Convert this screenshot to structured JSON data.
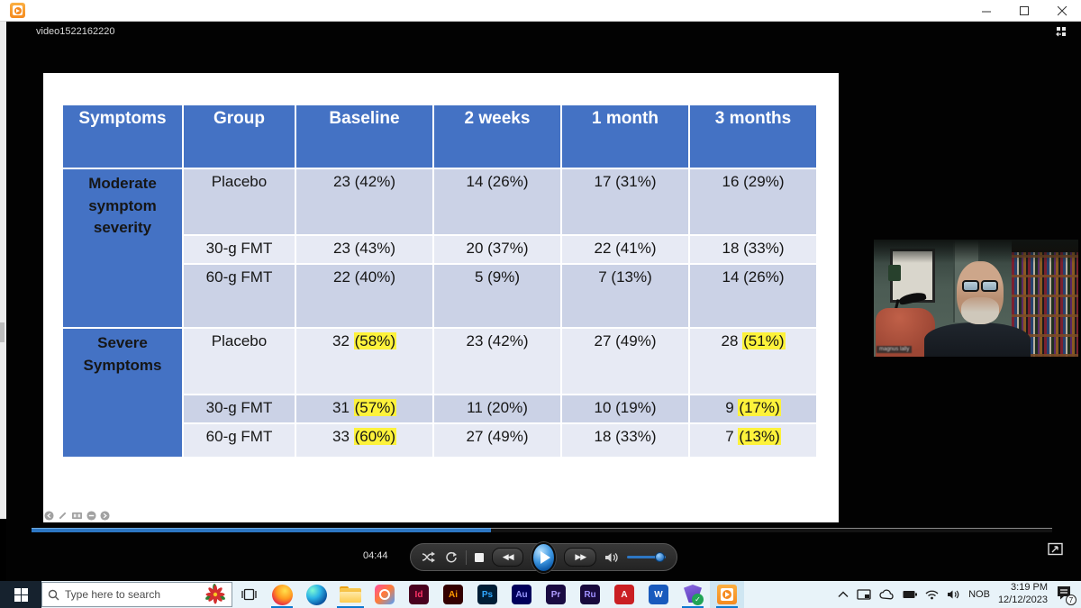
{
  "window": {
    "video_label": "video1522162220",
    "app_icon": "media-player-icon"
  },
  "slide": {
    "table": {
      "headers": [
        "Symptoms",
        "Group",
        "Baseline",
        "2 weeks",
        "1 month",
        "3 months"
      ],
      "groups": [
        {
          "label": "Moderate symptom severity",
          "rows": [
            {
              "group": "Placebo",
              "cells": [
                {
                  "pre": "23 (42%)"
                },
                {
                  "pre": "14 (26%)"
                },
                {
                  "pre": "17 (31%)"
                },
                {
                  "pre": "16 (29%)"
                }
              ]
            },
            {
              "group": "30-g FMT",
              "cells": [
                {
                  "pre": "23 (43%)"
                },
                {
                  "pre": "20 (37%)"
                },
                {
                  "pre": "22 (41%)"
                },
                {
                  "pre": "18 (33%)"
                }
              ]
            },
            {
              "group": "60-g FMT",
              "cells": [
                {
                  "pre": "22 (40%)"
                },
                {
                  "pre": "5 (9%)"
                },
                {
                  "pre": "7 (13%)"
                },
                {
                  "pre": "14 (26%)"
                }
              ]
            }
          ]
        },
        {
          "label": "Severe Symptoms",
          "rows": [
            {
              "group": "Placebo",
              "cells": [
                {
                  "pre": "32 ",
                  "hl": "(58%)"
                },
                {
                  "pre": "23 (42%)"
                },
                {
                  "pre": "27 (49%)"
                },
                {
                  "pre": "28 ",
                  "hl": "(51%)"
                }
              ]
            },
            {
              "group": "30-g FMT",
              "cells": [
                {
                  "pre": "31 ",
                  "hl": "(57%)"
                },
                {
                  "pre": "11 (20%)"
                },
                {
                  "pre": "10 (19%)"
                },
                {
                  "pre": "9 ",
                  "hl": "(17%)"
                }
              ]
            },
            {
              "group": "60-g FMT",
              "cells": [
                {
                  "pre": "33 ",
                  "hl": "(60%)"
                },
                {
                  "pre": "27 (49%)"
                },
                {
                  "pre": "18 (33%)"
                },
                {
                  "pre": "7 ",
                  "hl": "(13%)"
                }
              ]
            }
          ]
        }
      ],
      "colors": {
        "header_bg": "#4472c4",
        "band_dark": "#cbd2e6",
        "band_light": "#e7eaf4",
        "highlight": "#fdf23b"
      }
    },
    "toolbar_icons": [
      "prev-slide-icon",
      "pen-icon",
      "see-all-slides-icon",
      "options-icon",
      "next-slide-icon"
    ]
  },
  "player": {
    "elapsed": "04:44",
    "progress_pct": 45,
    "volume_pct": 85,
    "button_icons": [
      "shuffle-icon",
      "repeat-icon",
      "stop-icon",
      "rewind-icon",
      "play-icon",
      "fast-forward-icon",
      "volume-icon"
    ]
  },
  "webcam": {
    "name_label": "magnus lally"
  },
  "taskbar": {
    "search_placeholder": "Type here to search",
    "apps": [
      {
        "id": "firefox",
        "running": true
      },
      {
        "id": "edge"
      },
      {
        "id": "explorer",
        "running": true,
        "wide": true
      },
      {
        "id": "creative-cloud"
      },
      {
        "id": "indesign",
        "label": "Id",
        "bg": "#49021f",
        "fg": "#ff3366"
      },
      {
        "id": "illustrator",
        "label": "Ai",
        "bg": "#330000",
        "fg": "#ff9a00"
      },
      {
        "id": "photoshop",
        "label": "Ps",
        "bg": "#001e36",
        "fg": "#31a8ff"
      },
      {
        "id": "audition",
        "label": "Au",
        "bg": "#00005b",
        "fg": "#9999ff"
      },
      {
        "id": "premiere",
        "label": "Pr",
        "bg": "#1a0b42",
        "fg": "#b09dff"
      },
      {
        "id": "rush",
        "label": "Ru",
        "bg": "#180a3d",
        "fg": "#9f8fff"
      },
      {
        "id": "acrobat",
        "label": "A",
        "bg": "#ca1f23",
        "fg": "#ffffff"
      },
      {
        "id": "word",
        "label": "W",
        "bg": "#185abd",
        "fg": "#ffffff"
      },
      {
        "id": "check-app",
        "running": true
      },
      {
        "id": "movies-tv",
        "running": true,
        "active": true
      }
    ],
    "tray": {
      "language": "NOB",
      "time": "3:19 PM",
      "date": "12/12/2023",
      "notification_count": "7"
    }
  }
}
